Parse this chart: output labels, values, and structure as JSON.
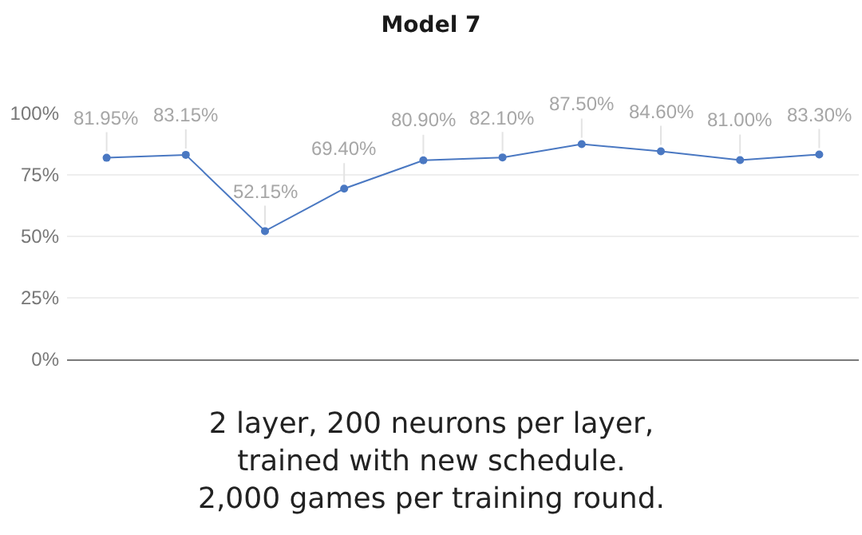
{
  "chart_data": {
    "type": "line",
    "title": "Model 7",
    "categories": [
      null,
      null,
      null,
      null,
      null,
      null,
      null,
      null,
      null,
      null
    ],
    "values": [
      81.95,
      83.15,
      52.15,
      69.4,
      80.9,
      82.1,
      87.5,
      84.6,
      81.0,
      83.3
    ],
    "value_labels": [
      "81.95%",
      "83.15%",
      "52.15%",
      "69.40%",
      "80.90%",
      "82.10%",
      "87.50%",
      "84.60%",
      "81.00%",
      "83.30%"
    ],
    "color": "#4a78c2",
    "ylim": [
      0,
      100
    ],
    "yticks": [
      {
        "value": 0,
        "label": "0%"
      },
      {
        "value": 25,
        "label": "25%"
      },
      {
        "value": 50,
        "label": "50%"
      },
      {
        "value": 75,
        "label": "75%"
      },
      {
        "value": 100,
        "label": "100%"
      }
    ],
    "grid": "y",
    "tick_labels": "y",
    "marker": "circle",
    "line_style": "solid",
    "annotations": [
      "2 layer, 200 neurons per layer,\ntrained with new schedule.\n2,000 games per training round."
    ]
  }
}
